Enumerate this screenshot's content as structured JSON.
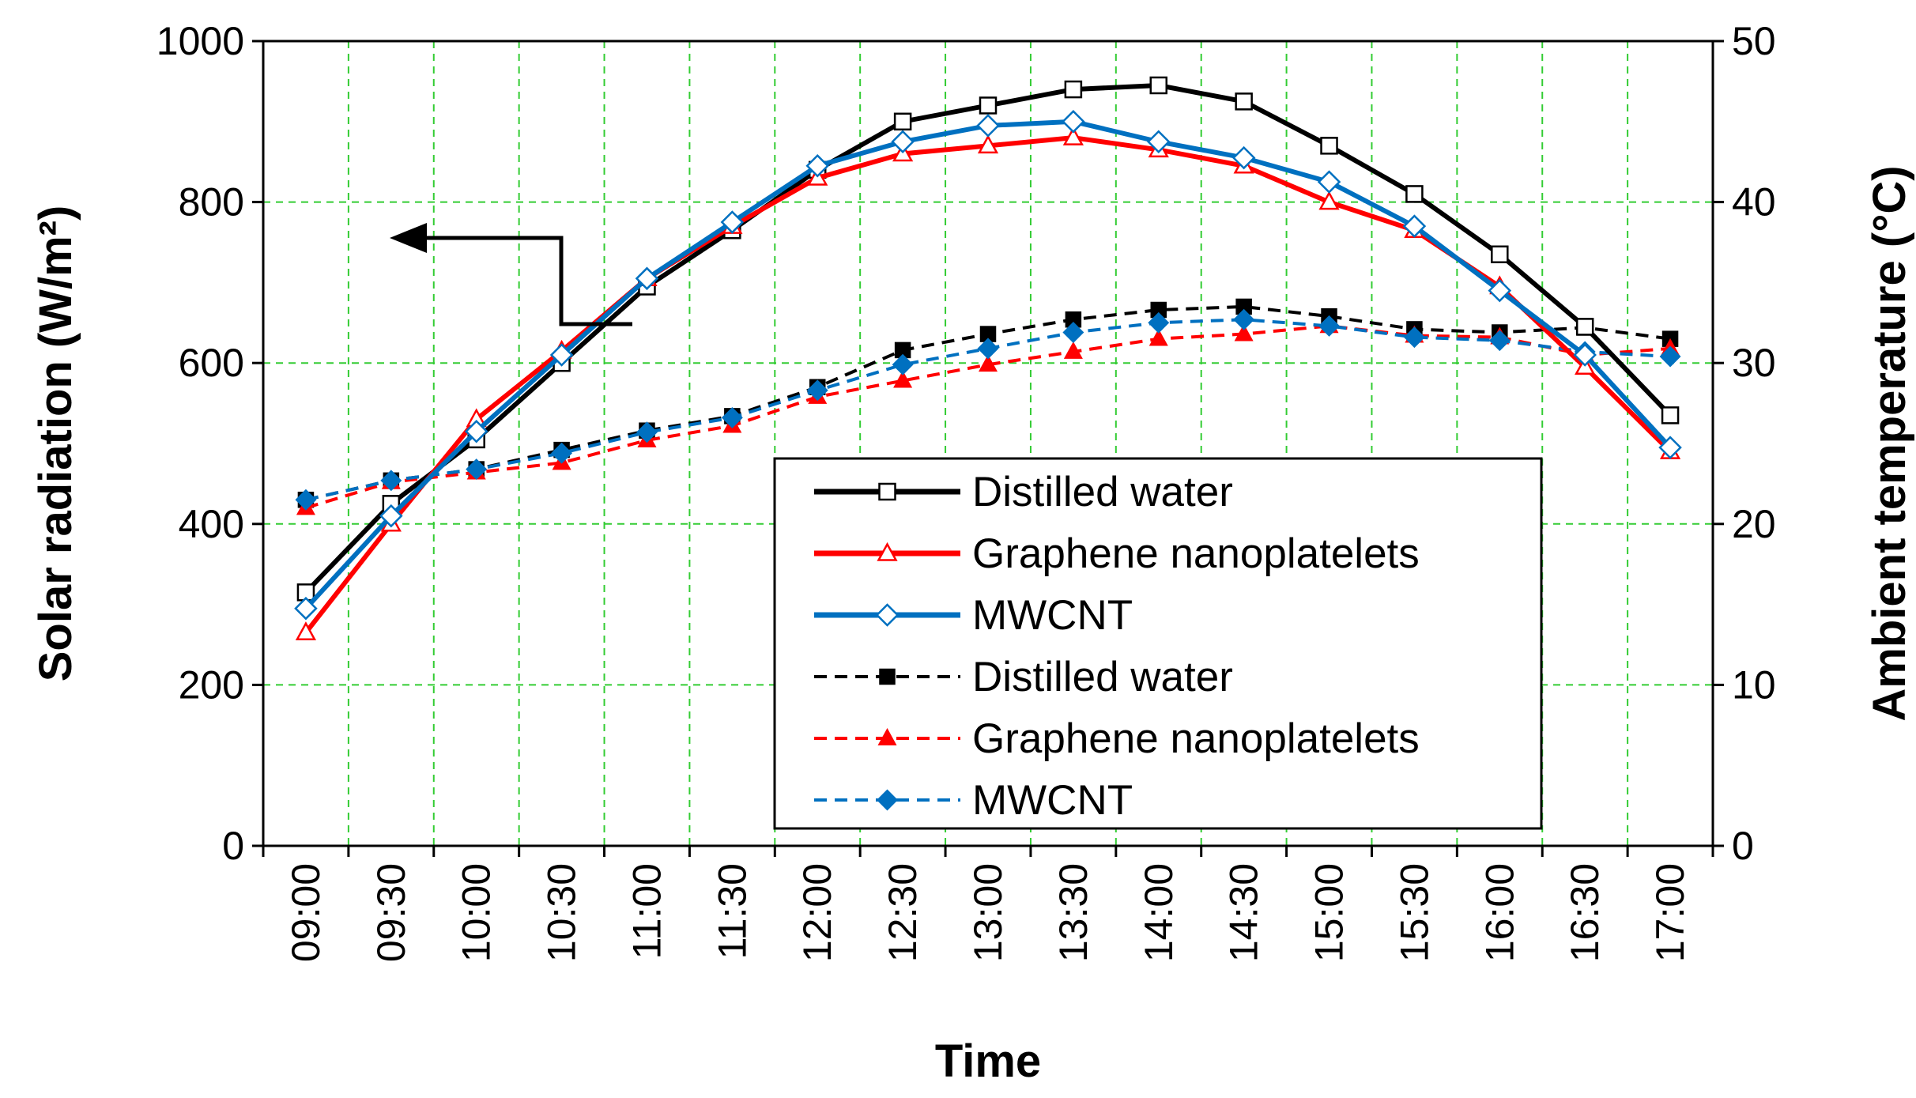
{
  "chart_data": {
    "type": "line",
    "xlabel": "Time",
    "ylabel_left": "Solar radiation (W/m²)",
    "ylabel_right": "Ambient temperature (°C)",
    "ylim_left": [
      0,
      1000
    ],
    "ylim_right": [
      0,
      50
    ],
    "yticks_left": [
      "0",
      "200",
      "400",
      "600",
      "800",
      "1000"
    ],
    "yticks_right": [
      "0",
      "10",
      "20",
      "30",
      "40",
      "50"
    ],
    "grid": true,
    "legend_position": "center-right",
    "annotation": "arrow pointing to the left (solar radiation) axis",
    "categories": [
      "09:00",
      "09:30",
      "10:00",
      "10:30",
      "11:00",
      "11:30",
      "12:00",
      "12:30",
      "13:00",
      "13:30",
      "14:00",
      "14:30",
      "15:00",
      "15:30",
      "16:00",
      "16:30",
      "17:00"
    ],
    "series": [
      {
        "name": "Distilled water",
        "axis": "left",
        "style": "solid",
        "marker": "square-open",
        "color": "#000000",
        "values": [
          315,
          425,
          505,
          600,
          695,
          765,
          840,
          900,
          920,
          940,
          945,
          925,
          870,
          810,
          735,
          645,
          535
        ]
      },
      {
        "name": "Graphene nanoplatelets",
        "axis": "left",
        "style": "solid",
        "marker": "triangle-open",
        "color": "#ff0000",
        "values": [
          265,
          400,
          530,
          615,
          705,
          770,
          830,
          860,
          870,
          880,
          865,
          845,
          800,
          765,
          695,
          595,
          490
        ]
      },
      {
        "name": "MWCNT",
        "axis": "left",
        "style": "solid",
        "marker": "diamond-open",
        "color": "#0070c0",
        "values": [
          295,
          410,
          515,
          610,
          705,
          775,
          845,
          875,
          895,
          900,
          875,
          855,
          825,
          770,
          690,
          610,
          495
        ]
      },
      {
        "name": "Distilled water",
        "axis": "right",
        "style": "dashed",
        "marker": "square-filled",
        "color": "#000000",
        "values": [
          21.5,
          22.7,
          23.4,
          24.6,
          25.8,
          26.7,
          28.5,
          30.8,
          31.8,
          32.7,
          33.3,
          33.5,
          32.9,
          32.1,
          31.9,
          32.2,
          31.5
        ]
      },
      {
        "name": "Graphene nanoplatelets",
        "axis": "right",
        "style": "dashed",
        "marker": "triangle-filled",
        "color": "#ff0000",
        "values": [
          21.0,
          22.6,
          23.2,
          23.8,
          25.2,
          26.1,
          27.9,
          28.9,
          29.9,
          30.7,
          31.5,
          31.8,
          32.3,
          31.7,
          31.6,
          30.5,
          30.9
        ]
      },
      {
        "name": "MWCNT",
        "axis": "right",
        "style": "dashed",
        "marker": "diamond-filled",
        "color": "#0070c0",
        "values": [
          21.5,
          22.7,
          23.4,
          24.4,
          25.7,
          26.6,
          28.3,
          29.9,
          30.9,
          31.9,
          32.5,
          32.7,
          32.3,
          31.6,
          31.4,
          30.7,
          30.4
        ]
      }
    ]
  }
}
